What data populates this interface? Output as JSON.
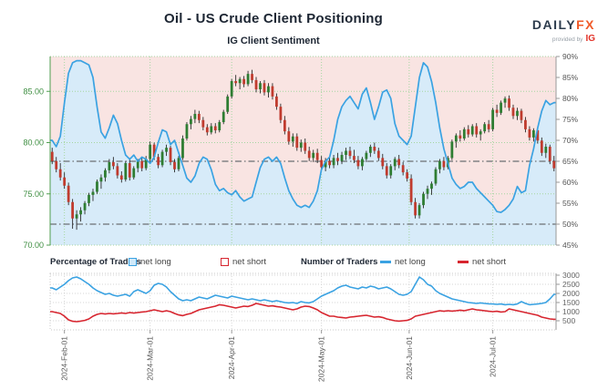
{
  "header": {
    "title": "Oil - US Crude Client Positioning",
    "subtitle": "IG Client Sentiment",
    "logo": {
      "brand_dark": "DAILY",
      "brand_accent": "FX",
      "provided_by": "provided by",
      "ig": "IG"
    }
  },
  "legend": {
    "pct_title": "Percentage of Traders",
    "pct_long": "net long",
    "pct_short": "net short",
    "num_title": "Number of Traders",
    "num_long": "net long",
    "num_short": "net short"
  },
  "chart_data": {
    "type": "candlestick+line",
    "title": "IG Client Sentiment",
    "legend_position": "bottom",
    "grid": true,
    "price_axis": {
      "side": "left",
      "tick_labels": [
        "85.00",
        "80.00",
        "75.00",
        "70.00"
      ],
      "tick_values": [
        85,
        80,
        75,
        70
      ],
      "domain": [
        70,
        88.4
      ]
    },
    "pct_axis": {
      "side": "right",
      "tick_labels": [
        "90%",
        "85%",
        "80%",
        "75%",
        "70%",
        "65%",
        "60%",
        "55%",
        "50%",
        "45%"
      ],
      "tick_values": [
        90,
        85,
        80,
        75,
        70,
        65,
        60,
        55,
        50,
        45
      ],
      "domain": [
        45,
        90
      ]
    },
    "count_axis": {
      "side": "right",
      "tick_labels": [
        "3000",
        "2500",
        "2000",
        "1500",
        "1000",
        "500"
      ],
      "tick_values": [
        3000,
        2500,
        2000,
        1500,
        1000,
        500
      ],
      "domain": [
        0,
        3100
      ]
    },
    "x_ticks": {
      "labels": [
        "2024-Feb-01",
        "2024-Mar-01",
        "2024-Apr-01",
        "2024-May-01",
        "2024-Jun-01",
        "2024-Jul-01"
      ],
      "indices": [
        3,
        24,
        44,
        66,
        87.5,
        108
      ]
    },
    "reference_pct_lines": [
      65,
      50
    ],
    "candles": [
      [
        79.1,
        79.5,
        77.9,
        78.2
      ],
      [
        78.2,
        78.6,
        77.1,
        77.4
      ],
      [
        77.4,
        78.0,
        76.3,
        76.6
      ],
      [
        76.6,
        77.1,
        75.5,
        75.8
      ],
      [
        75.8,
        76.1,
        73.9,
        74.2
      ],
      [
        74.2,
        74.5,
        71.6,
        72.6
      ],
      [
        72.6,
        73.4,
        71.5,
        73.0
      ],
      [
        73.0,
        73.7,
        72.3,
        73.4
      ],
      [
        73.4,
        74.3,
        73.0,
        74.1
      ],
      [
        74.1,
        75.1,
        73.8,
        74.9
      ],
      [
        74.9,
        75.5,
        74.3,
        75.2
      ],
      [
        75.2,
        76.4,
        75.0,
        76.2
      ],
      [
        76.2,
        76.9,
        75.5,
        76.6
      ],
      [
        76.6,
        77.5,
        76.2,
        77.3
      ],
      [
        77.3,
        78.4,
        77.0,
        78.1
      ],
      [
        78.1,
        78.6,
        77.4,
        77.7
      ],
      [
        77.7,
        78.0,
        76.5,
        76.8
      ],
      [
        76.8,
        77.2,
        76.1,
        76.4
      ],
      [
        76.4,
        78.2,
        76.2,
        78.0
      ],
      [
        78.0,
        78.5,
        76.3,
        76.6
      ],
      [
        76.6,
        77.7,
        76.4,
        77.5
      ],
      [
        77.5,
        78.4,
        77.1,
        78.2
      ],
      [
        78.2,
        78.6,
        77.2,
        77.5
      ],
      [
        77.5,
        78.7,
        77.3,
        78.4
      ],
      [
        78.4,
        80.1,
        78.1,
        79.8
      ],
      [
        79.8,
        80.0,
        78.3,
        78.6
      ],
      [
        78.6,
        78.9,
        77.5,
        77.8
      ],
      [
        77.8,
        79.3,
        77.6,
        79.1
      ],
      [
        79.1,
        79.8,
        78.7,
        79.5
      ],
      [
        79.5,
        79.7,
        77.8,
        78.1
      ],
      [
        78.1,
        78.4,
        77.1,
        77.4
      ],
      [
        77.4,
        78.7,
        77.2,
        78.5
      ],
      [
        78.5,
        80.7,
        78.3,
        80.4
      ],
      [
        80.4,
        82.0,
        80.2,
        81.8
      ],
      [
        81.8,
        82.6,
        81.3,
        82.3
      ],
      [
        82.3,
        83.2,
        81.9,
        82.8
      ],
      [
        82.8,
        83.1,
        81.9,
        82.2
      ],
      [
        82.2,
        82.5,
        81.2,
        81.5
      ],
      [
        81.5,
        81.8,
        80.7,
        81.0
      ],
      [
        81.0,
        81.9,
        80.8,
        81.6
      ],
      [
        81.6,
        81.9,
        80.9,
        81.2
      ],
      [
        81.2,
        82.2,
        81.0,
        82.0
      ],
      [
        82.0,
        83.2,
        81.8,
        83.0
      ],
      [
        83.0,
        84.7,
        82.8,
        84.5
      ],
      [
        84.5,
        86.2,
        84.3,
        86.0
      ],
      [
        86.0,
        86.6,
        85.5,
        85.8
      ],
      [
        85.8,
        86.4,
        85.2,
        86.2
      ],
      [
        86.2,
        86.5,
        85.4,
        85.7
      ],
      [
        85.7,
        87.0,
        85.5,
        86.7
      ],
      [
        86.7,
        87.1,
        85.8,
        86.1
      ],
      [
        86.1,
        86.4,
        84.9,
        85.2
      ],
      [
        85.2,
        86.0,
        84.8,
        85.8
      ],
      [
        85.8,
        86.1,
        84.6,
        84.9
      ],
      [
        84.9,
        85.8,
        84.4,
        85.5
      ],
      [
        85.5,
        85.8,
        84.2,
        84.5
      ],
      [
        84.5,
        84.8,
        83.2,
        83.5
      ],
      [
        83.5,
        83.8,
        81.9,
        82.2
      ],
      [
        82.2,
        82.6,
        80.8,
        81.1
      ],
      [
        81.1,
        81.5,
        79.8,
        80.1
      ],
      [
        80.1,
        80.9,
        79.6,
        80.6
      ],
      [
        80.6,
        80.9,
        79.2,
        79.5
      ],
      [
        79.5,
        80.3,
        79.1,
        80.0
      ],
      [
        80.0,
        80.4,
        78.9,
        79.2
      ],
      [
        79.2,
        79.6,
        78.2,
        78.5
      ],
      [
        78.5,
        79.3,
        78.1,
        79.0
      ],
      [
        79.0,
        79.4,
        78.0,
        78.3
      ],
      [
        78.3,
        78.7,
        77.3,
        77.6
      ],
      [
        77.6,
        78.5,
        77.2,
        78.2
      ],
      [
        78.2,
        78.6,
        77.5,
        77.8
      ],
      [
        77.8,
        78.8,
        77.5,
        78.5
      ],
      [
        78.5,
        79.0,
        77.8,
        78.2
      ],
      [
        78.2,
        79.1,
        77.9,
        78.8
      ],
      [
        78.8,
        79.5,
        78.3,
        79.2
      ],
      [
        79.2,
        79.6,
        78.4,
        78.7
      ],
      [
        78.7,
        79.3,
        78.0,
        78.3
      ],
      [
        78.3,
        78.7,
        77.4,
        77.7
      ],
      [
        77.7,
        78.6,
        77.3,
        78.4
      ],
      [
        78.4,
        79.2,
        78.1,
        79.0
      ],
      [
        79.0,
        79.8,
        78.6,
        79.6
      ],
      [
        79.6,
        80.0,
        78.9,
        79.2
      ],
      [
        79.2,
        79.5,
        78.2,
        78.5
      ],
      [
        78.5,
        78.9,
        77.4,
        77.7
      ],
      [
        77.7,
        78.0,
        76.5,
        76.8
      ],
      [
        76.8,
        77.9,
        76.5,
        77.7
      ],
      [
        77.7,
        78.6,
        77.3,
        78.4
      ],
      [
        78.4,
        78.8,
        77.5,
        77.8
      ],
      [
        77.8,
        78.1,
        76.8,
        77.1
      ],
      [
        77.1,
        77.4,
        76.2,
        76.5
      ],
      [
        76.5,
        76.9,
        73.9,
        74.2
      ],
      [
        74.2,
        74.6,
        72.6,
        72.9
      ],
      [
        72.9,
        74.1,
        72.6,
        73.9
      ],
      [
        73.9,
        75.2,
        73.6,
        75.0
      ],
      [
        75.0,
        75.8,
        74.5,
        75.5
      ],
      [
        75.5,
        76.2,
        74.9,
        76.0
      ],
      [
        76.0,
        77.6,
        75.8,
        77.4
      ],
      [
        77.4,
        78.4,
        77.0,
        78.2
      ],
      [
        78.2,
        78.6,
        77.3,
        77.6
      ],
      [
        77.6,
        78.7,
        77.4,
        78.5
      ],
      [
        78.5,
        80.3,
        78.3,
        80.1
      ],
      [
        80.1,
        80.9,
        79.5,
        80.7
      ],
      [
        80.7,
        81.2,
        80.1,
        80.4
      ],
      [
        80.4,
        81.5,
        80.2,
        81.3
      ],
      [
        81.3,
        81.7,
        80.5,
        80.8
      ],
      [
        80.8,
        81.8,
        80.6,
        81.6
      ],
      [
        81.6,
        81.9,
        80.5,
        80.8
      ],
      [
        80.8,
        81.3,
        80.2,
        81.1
      ],
      [
        81.1,
        82.0,
        80.9,
        81.8
      ],
      [
        81.8,
        82.2,
        81.0,
        81.3
      ],
      [
        81.3,
        83.4,
        81.1,
        83.2
      ],
      [
        83.2,
        83.7,
        82.5,
        82.9
      ],
      [
        82.9,
        84.1,
        82.7,
        83.9
      ],
      [
        83.9,
        84.5,
        83.4,
        84.3
      ],
      [
        84.3,
        84.6,
        83.1,
        83.4
      ],
      [
        83.4,
        83.7,
        82.3,
        82.6
      ],
      [
        82.6,
        83.4,
        82.2,
        83.1
      ],
      [
        83.1,
        83.3,
        81.9,
        82.2
      ],
      [
        82.2,
        82.5,
        81.0,
        81.3
      ],
      [
        81.3,
        81.6,
        80.2,
        80.5
      ],
      [
        80.5,
        81.4,
        80.1,
        81.2
      ],
      [
        81.2,
        81.5,
        79.9,
        80.2
      ],
      [
        80.2,
        80.5,
        78.7,
        79.0
      ],
      [
        79.0,
        79.9,
        78.5,
        79.6
      ],
      [
        79.6,
        79.8,
        77.9,
        78.2
      ],
      [
        78.2,
        78.7,
        77.2,
        77.5
      ]
    ],
    "net_long_pct": [
      70,
      68.5,
      71,
      79,
      86,
      88.5,
      89,
      89,
      88.5,
      88,
      85,
      78,
      72,
      70.5,
      73,
      76,
      74,
      70,
      66.5,
      65.5,
      66.5,
      65,
      66,
      65.5,
      64.5,
      66,
      69.5,
      72.5,
      72,
      69,
      70,
      67,
      64,
      61,
      60,
      61.5,
      64.5,
      66,
      65.5,
      63,
      59.5,
      58,
      58.5,
      57.5,
      57,
      58,
      56.5,
      55.5,
      56,
      56.5,
      60,
      63.5,
      65.5,
      66,
      65,
      66,
      64.5,
      61,
      58,
      56,
      54.5,
      54,
      54.5,
      54,
      55.5,
      58,
      63,
      65,
      66,
      70,
      75,
      78,
      79.5,
      80.5,
      79,
      77.5,
      81,
      82.5,
      79,
      75,
      78,
      81.5,
      82,
      80,
      74,
      71,
      70,
      69,
      71,
      78,
      85,
      88.5,
      87.5,
      84,
      79,
      73,
      68,
      64.5,
      61,
      59.5,
      58.5,
      59,
      60,
      60,
      58.5,
      57.5,
      56.5,
      55.5,
      54.5,
      53,
      52.8,
      53.5,
      54.5,
      56,
      59,
      57.5,
      58,
      64,
      68,
      73,
      77,
      79.5,
      78.5,
      79
    ],
    "net_long_count": [
      2300,
      2200,
      2350,
      2500,
      2700,
      2850,
      2900,
      2800,
      2650,
      2500,
      2300,
      2150,
      2050,
      1950,
      2000,
      1900,
      1850,
      1900,
      1950,
      1850,
      2100,
      2200,
      2100,
      2000,
      2150,
      2450,
      2550,
      2500,
      2350,
      2100,
      1900,
      1700,
      1600,
      1650,
      1600,
      1700,
      1800,
      1750,
      1700,
      1800,
      1900,
      1850,
      1800,
      1750,
      1850,
      1800,
      1750,
      1700,
      1650,
      1700,
      1650,
      1600,
      1650,
      1600,
      1550,
      1600,
      1550,
      1500,
      1480,
      1500,
      1450,
      1550,
      1500,
      1480,
      1550,
      1700,
      1850,
      1950,
      2050,
      2150,
      2300,
      2400,
      2450,
      2350,
      2300,
      2250,
      2350,
      2300,
      2400,
      2350,
      2250,
      2300,
      2350,
      2250,
      2100,
      1950,
      1900,
      1950,
      2100,
      2500,
      2900,
      2750,
      2500,
      2400,
      2150,
      2000,
      1900,
      1800,
      1700,
      1650,
      1600,
      1550,
      1500,
      1480,
      1450,
      1480,
      1450,
      1430,
      1420,
      1400,
      1420,
      1380,
      1400,
      1380,
      1420,
      1550,
      1450,
      1380,
      1400,
      1420,
      1450,
      1500,
      1700,
      1950
    ],
    "net_short_count": [
      1000,
      950,
      900,
      750,
      550,
      470,
      450,
      480,
      520,
      600,
      750,
      850,
      900,
      870,
      900,
      880,
      900,
      930,
      900,
      950,
      920,
      950,
      980,
      1000,
      1050,
      1100,
      1050,
      1000,
      1050,
      1000,
      900,
      820,
      780,
      850,
      900,
      1000,
      1100,
      1150,
      1200,
      1250,
      1300,
      1380,
      1350,
      1300,
      1250,
      1200,
      1250,
      1300,
      1280,
      1350,
      1450,
      1400,
      1350,
      1300,
      1320,
      1280,
      1250,
      1200,
      1150,
      1100,
      1150,
      1250,
      1300,
      1280,
      1200,
      1100,
      950,
      850,
      750,
      750,
      700,
      680,
      650,
      700,
      720,
      750,
      780,
      800,
      750,
      700,
      720,
      680,
      600,
      550,
      500,
      480,
      500,
      520,
      600,
      750,
      800,
      850,
      900,
      950,
      1000,
      1050,
      1020,
      1050,
      1030,
      1050,
      1080,
      1050,
      1100,
      1150,
      1100,
      1080,
      1050,
      1020,
      1000,
      1020,
      980,
      1000,
      1150,
      1100,
      1050,
      1000,
      950,
      900,
      850,
      800,
      700,
      650,
      600,
      580
    ],
    "colors": {
      "candle_up": "#2e7d32",
      "candle_down": "#c03b2e",
      "wick": "#2b2b2b",
      "sentiment_line": "#3aa2e2",
      "long_fill": "#d7ebf9",
      "short_fill": "#f9e4e2",
      "count_long_line": "#3aa2e2",
      "count_short_line": "#d7252f",
      "grid_green": "#a5d6a0",
      "axis_green": "#4f9e4f",
      "price_label_green": "#3e8e41",
      "axis_gray": "#999999",
      "pct_label_gray": "#555555",
      "reference_line": "#6b6f73",
      "lower_grid": "#d5d5d5",
      "lower_border": "#c9c9c9",
      "count_label_gray": "#666666",
      "x_label_gray": "#555555"
    }
  }
}
